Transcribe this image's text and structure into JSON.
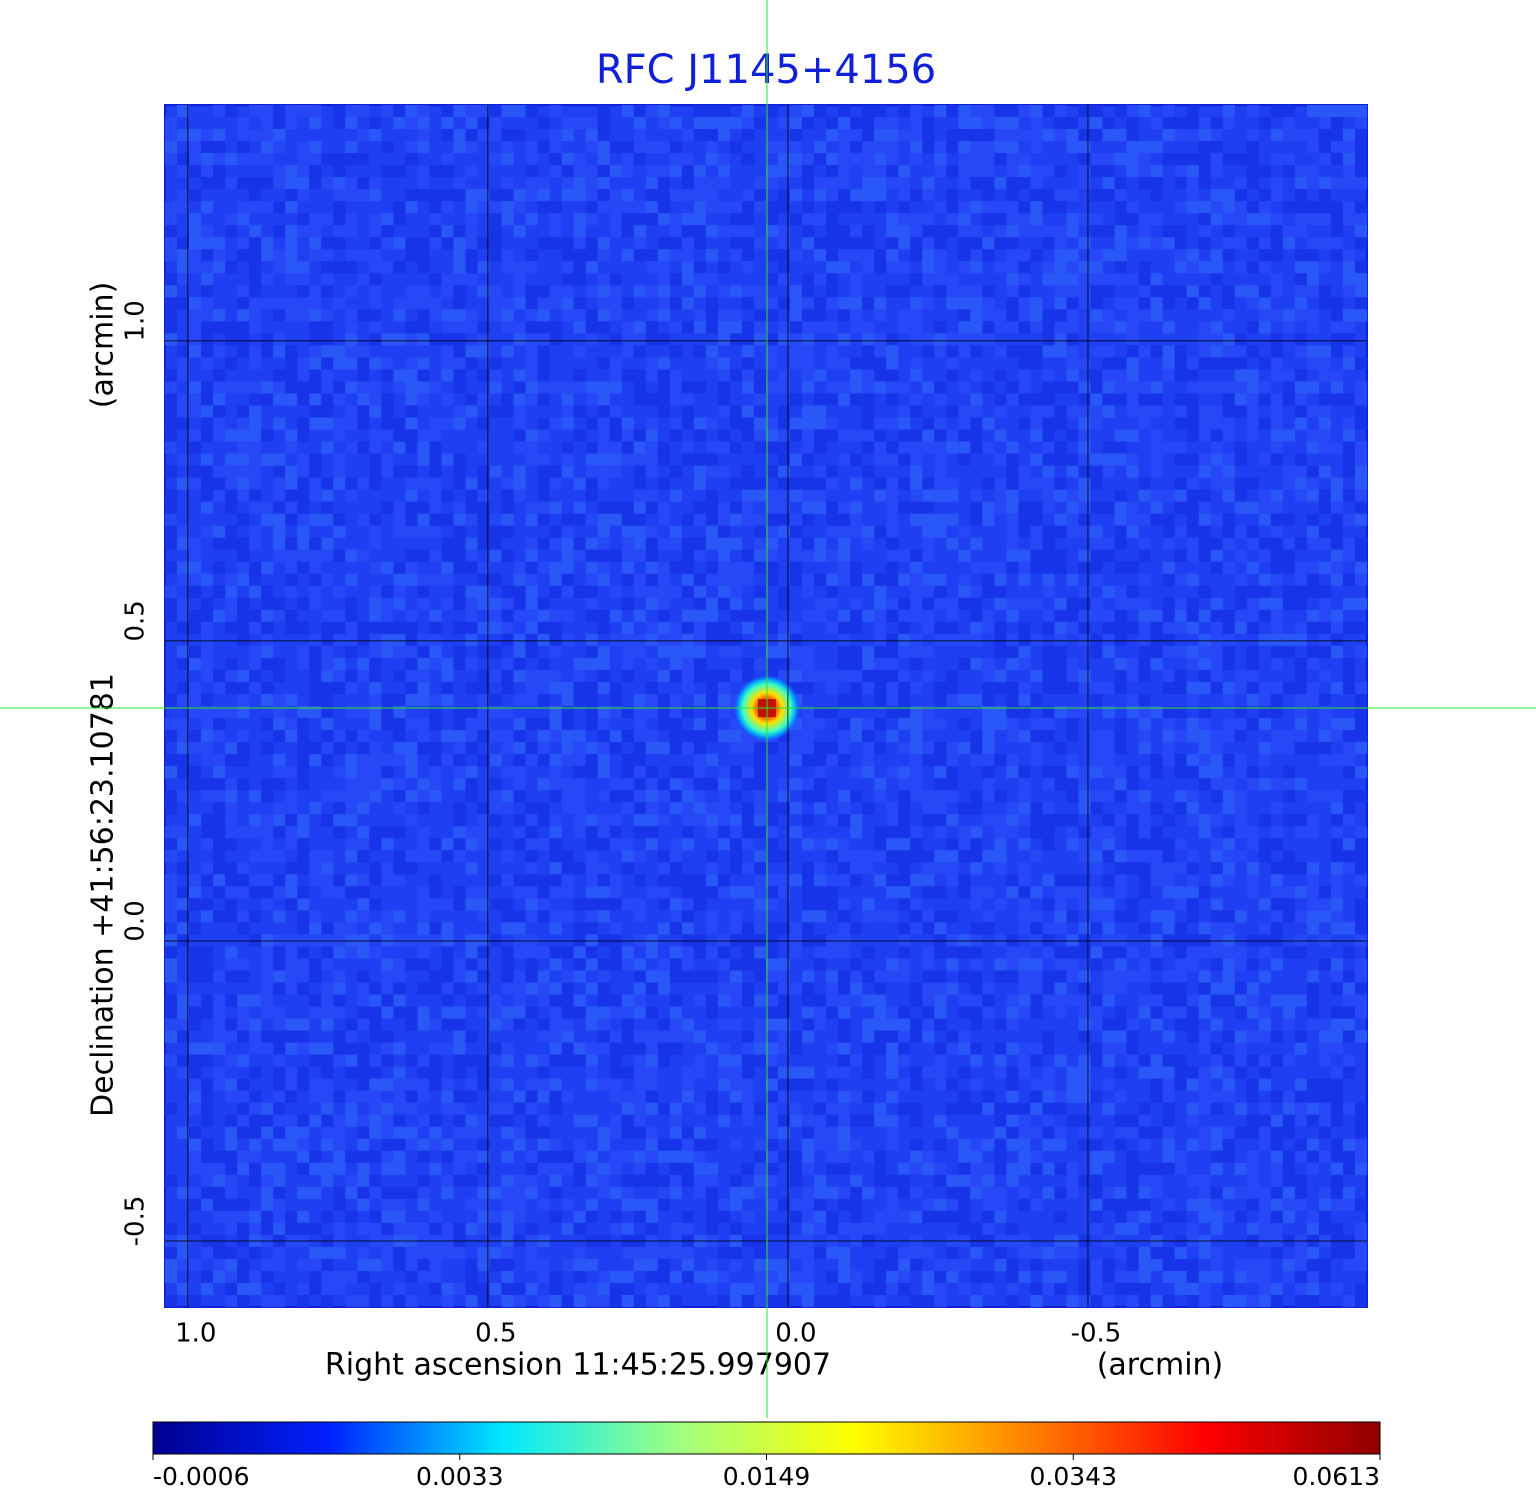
{
  "chart_data": {
    "type": "image",
    "title": "RFC J1145+4156",
    "x_label": "Right ascension  11:45:25.997907",
    "x_unit": "(arcmin)",
    "y_label": "Declination  +41:56:23.10781",
    "y_unit": "(arcmin)",
    "xlim": [
      1.038,
      -0.965
    ],
    "ylim": [
      -0.61,
      1.393
    ],
    "xticks": [
      {
        "value": 1,
        "label": "1.0"
      },
      0.5,
      {
        "value": 0,
        "label": "0.0"
      },
      -0.5
    ],
    "yticks": [
      -0.5,
      {
        "value": 0,
        "label": "0.0"
      },
      0.5,
      {
        "value": 1,
        "label": "1.0"
      }
    ],
    "grid": true,
    "source": {
      "x": 0.035,
      "y": 0.388
    },
    "colorbar": {
      "ticks": [
        -0.0006,
        0.0033,
        0.0149,
        0.0343,
        0.0613
      ],
      "colors": [
        "#00008f",
        "#0020ff",
        "#00e8ff",
        "#a0ff80",
        "#ffff00",
        "#ff8000",
        "#ff0000",
        "#900000"
      ]
    }
  }
}
